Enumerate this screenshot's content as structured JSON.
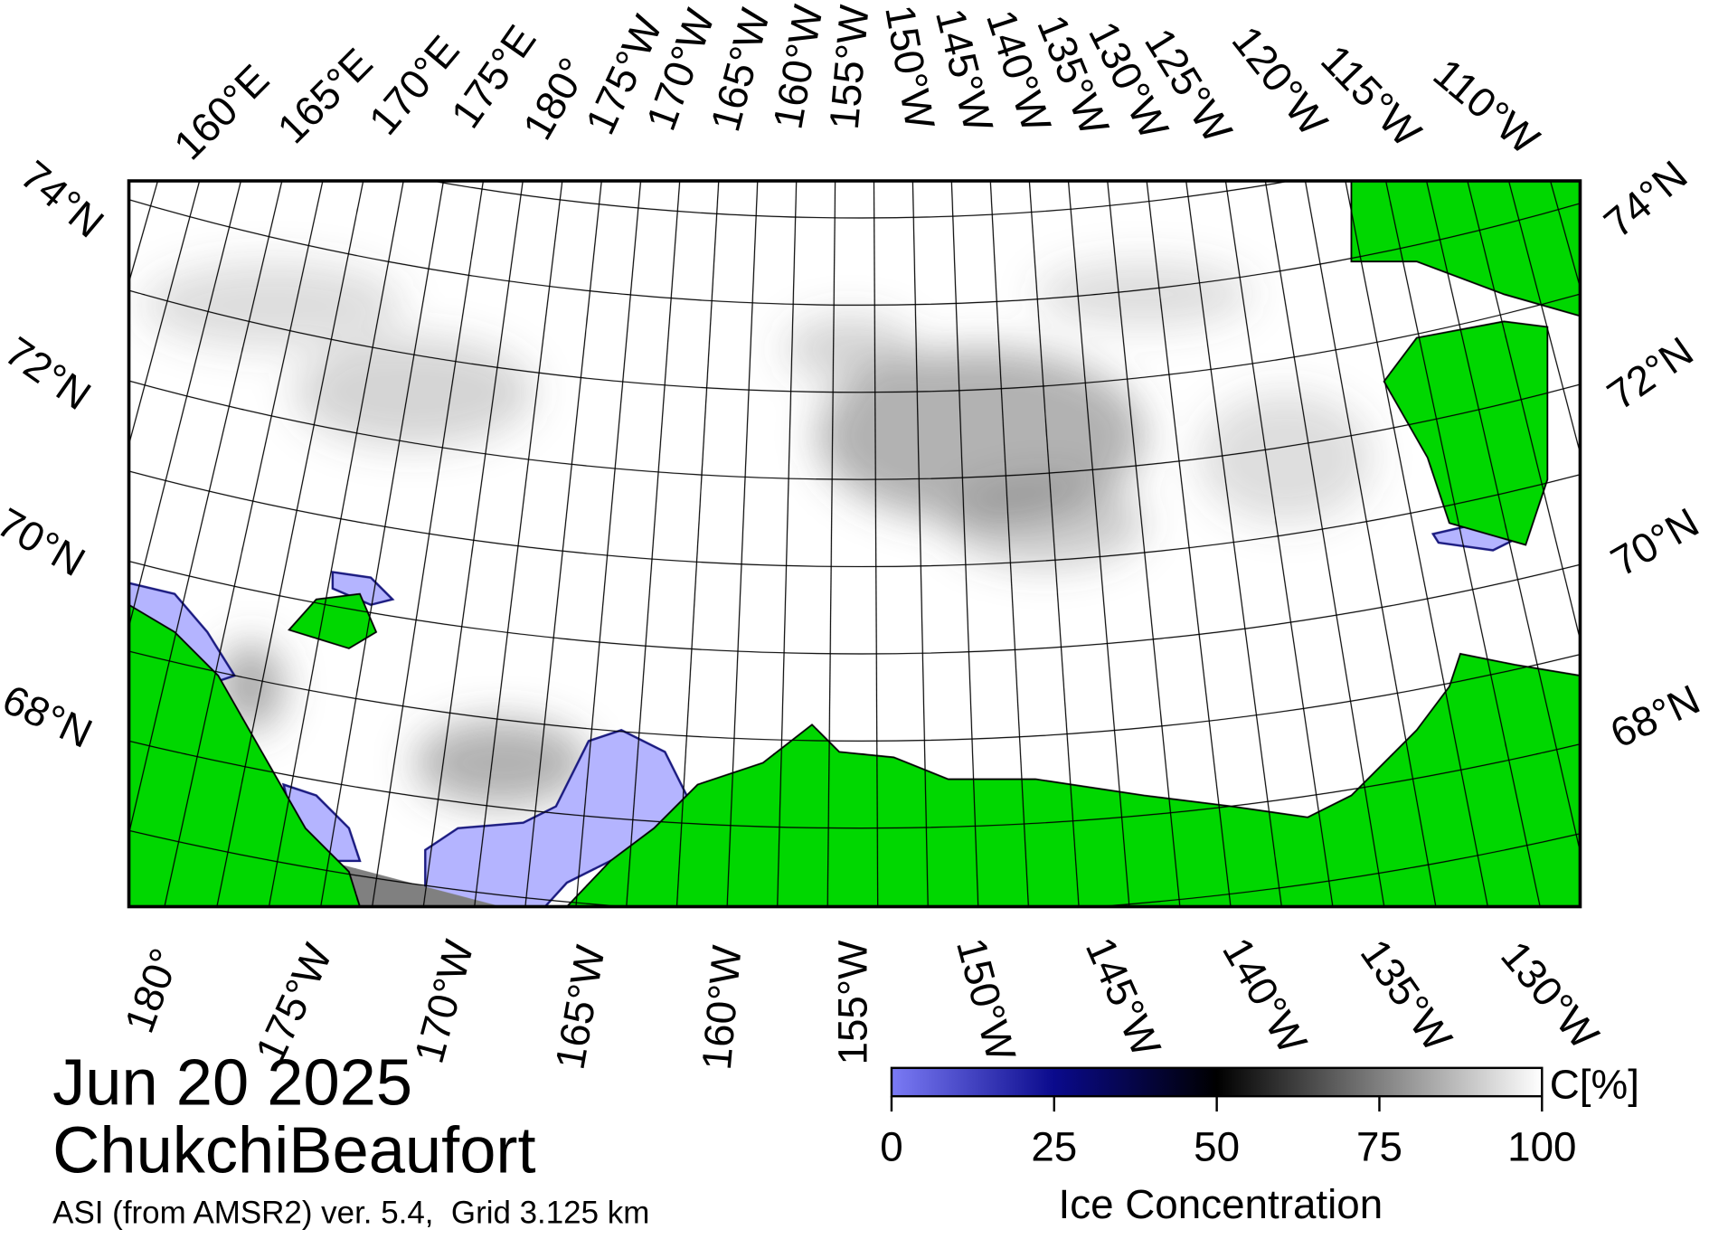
{
  "map": {
    "date": "Jun 20 2025",
    "region": "ChukchiBeaufort",
    "source": "ASI (from AMSR2) ver. 5.4,  Grid 3.125 km",
    "top_longitudes": [
      "160°E",
      "165°E",
      "170°E",
      "175°E",
      "180°",
      "175°W",
      "170°W",
      "165°W",
      "160°W",
      "155°W",
      "150°W",
      "145°W",
      "140°W",
      "135°W",
      "130°W",
      "125°W",
      "120°W",
      "115°W",
      "110°W"
    ],
    "bottom_longitudes": [
      "180°",
      "175°W",
      "170°W",
      "165°W",
      "160°W",
      "155°W",
      "150°W",
      "145°W",
      "140°W",
      "135°W",
      "130°W"
    ],
    "left_latitudes": [
      "74°N",
      "72°N",
      "70°N",
      "68°N"
    ],
    "right_latitudes": [
      "74°N",
      "72°N",
      "70°N",
      "68°N"
    ]
  },
  "colorbar": {
    "label": "Ice Concentration",
    "unit": "C[%]",
    "range": [
      0,
      100
    ],
    "ticks": [
      0,
      25,
      50,
      75,
      100
    ],
    "colormap": [
      {
        "value": 0,
        "color": "#7b7bf5"
      },
      {
        "value": 25,
        "color": "#0a0a8c"
      },
      {
        "value": 50,
        "color": "#000000"
      },
      {
        "value": 100,
        "color": "#ffffff"
      }
    ]
  }
}
